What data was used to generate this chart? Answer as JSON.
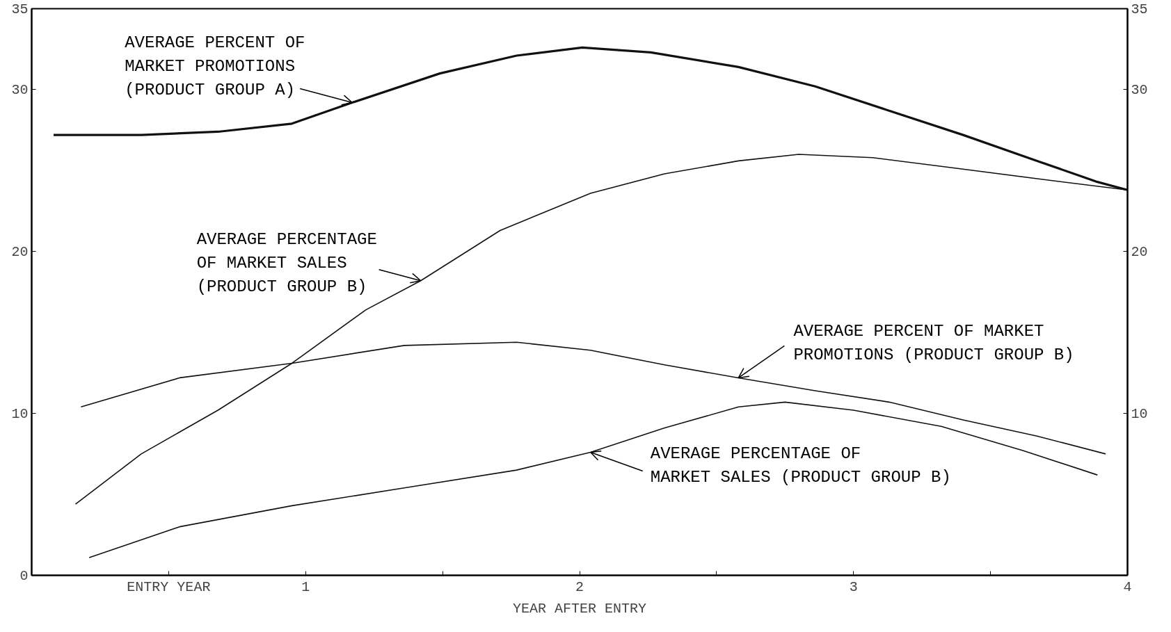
{
  "chart_data": {
    "type": "line",
    "xlabel": "YEAR AFTER ENTRY",
    "xlim": [
      0,
      4
    ],
    "xticks": [
      {
        "value": 0.5,
        "label": "ENTRY YEAR"
      },
      1,
      {
        "value": 1.5,
        "label": null
      },
      2,
      {
        "value": 2.5,
        "label": null
      },
      3,
      {
        "value": 3.5,
        "label": null
      },
      4
    ],
    "ylim": [
      0,
      35
    ],
    "yticks": [
      0,
      10,
      20,
      30,
      35
    ],
    "y2lim": [
      0,
      35
    ],
    "y2ticks": [
      10,
      20,
      30,
      35
    ],
    "grid": false,
    "marker": "none",
    "line_style": "solid",
    "series": [
      {
        "color": "#111111",
        "x": [
          0.08,
          0.4,
          0.68,
          0.95,
          1.17,
          1.49,
          1.77,
          2.01,
          2.26,
          2.58,
          2.86,
          3.13,
          3.4,
          3.67,
          3.89,
          4.0
        ],
        "values": [
          27.2,
          27.2,
          27.4,
          27.9,
          29.2,
          31.0,
          32.1,
          32.6,
          32.3,
          31.4,
          30.2,
          28.7,
          27.2,
          25.6,
          24.3,
          23.8
        ]
      },
      {
        "color": "#111111",
        "x": [
          0.16,
          0.4,
          0.68,
          0.95,
          1.22,
          1.42,
          1.71,
          2.04,
          2.31,
          2.58,
          2.8,
          3.07,
          3.35,
          3.67,
          4.0
        ],
        "values": [
          4.4,
          7.5,
          10.2,
          13.1,
          16.4,
          18.2,
          21.3,
          23.6,
          24.8,
          25.6,
          26.0,
          25.8,
          25.2,
          24.5,
          23.8
        ]
      },
      {
        "color": "#111111",
        "x": [
          0.18,
          0.54,
          0.95,
          1.36,
          1.77,
          2.04,
          2.31,
          2.58,
          2.86,
          3.13,
          3.4,
          3.67,
          3.92
        ],
        "values": [
          10.4,
          12.2,
          13.1,
          14.2,
          14.4,
          13.9,
          13.0,
          12.2,
          11.4,
          10.7,
          9.6,
          8.6,
          7.5
        ]
      },
      {
        "color": "#111111",
        "x": [
          0.21,
          0.54,
          0.95,
          1.36,
          1.77,
          2.04,
          2.31,
          2.58,
          2.75,
          3.0,
          3.32,
          3.62,
          3.89
        ],
        "values": [
          1.1,
          3.0,
          4.3,
          5.4,
          6.5,
          7.6,
          9.1,
          10.4,
          10.7,
          10.2,
          9.2,
          7.7,
          6.2
        ]
      }
    ],
    "annotations": [
      {
        "text": "AVERAGE PERCENT OF\nMARKET PROMOTIONS\n(PRODUCT GROUP A)",
        "x": 1.17,
        "y": 29.2
      },
      {
        "text": "AVERAGE PERCENTAGE\nOF MARKET SALES\n(PRODUCT GROUP B)",
        "x": 1.42,
        "y": 18.2
      },
      {
        "text": "AVERAGE PERCENT OF MARKET\nPROMOTIONS (PRODUCT GROUP B)",
        "x": 2.58,
        "y": 12.2
      },
      {
        "text": "AVERAGE PERCENTAGE OF\nMARKET SALES (PRODUCT GROUP B)",
        "x": 2.04,
        "y": 7.6
      }
    ]
  }
}
